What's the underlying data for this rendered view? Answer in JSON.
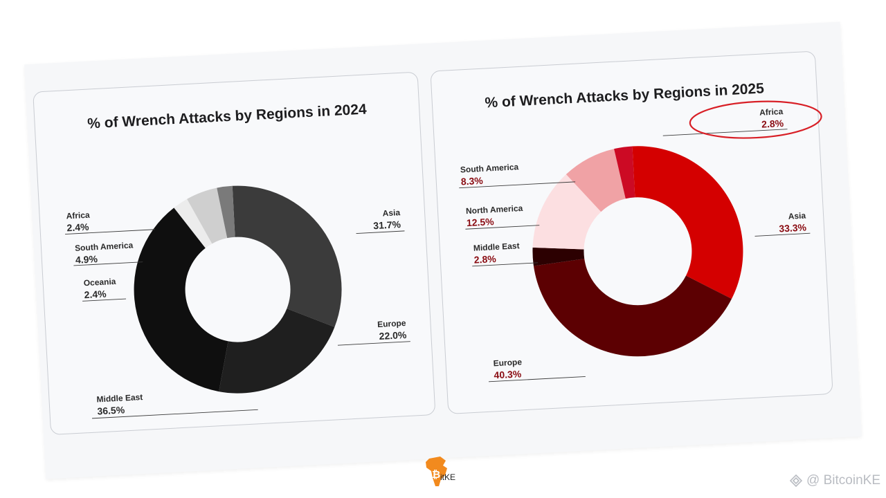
{
  "chart_data": [
    {
      "type": "pie",
      "title": "% of Wrench Attacks by Regions in 2024",
      "series": [
        {
          "label": "Asia",
          "value": 31.7,
          "text": "31.7%",
          "color": "#3b3b3b"
        },
        {
          "label": "Europe",
          "value": 22.0,
          "text": "22.0%",
          "color": "#1f1f1f"
        },
        {
          "label": "Middle East",
          "value": 36.5,
          "text": "36.5%",
          "color": "#0f0f0f"
        },
        {
          "label": "Oceania",
          "value": 2.4,
          "text": "2.4%",
          "color": "#ececec"
        },
        {
          "label": "South America",
          "value": 4.9,
          "text": "4.9%",
          "color": "#cfcfcf"
        },
        {
          "label": "Africa",
          "value": 2.4,
          "text": "2.4%",
          "color": "#7a7a7a"
        }
      ]
    },
    {
      "type": "pie",
      "title": "% of Wrench Attacks by Regions in 2025",
      "series": [
        {
          "label": "Asia",
          "value": 33.3,
          "text": "33.3%",
          "color": "#d40000"
        },
        {
          "label": "Europe",
          "value": 40.3,
          "text": "40.3%",
          "color": "#5c0002"
        },
        {
          "label": "Middle East",
          "value": 2.8,
          "text": "2.8%",
          "color": "#2c0001"
        },
        {
          "label": "North America",
          "value": 12.5,
          "text": "12.5%",
          "color": "#fcdfe1"
        },
        {
          "label": "South America",
          "value": 8.3,
          "text": "8.3%",
          "color": "#f0a2a5"
        },
        {
          "label": "Africa",
          "value": 2.8,
          "text": "2.8%",
          "color": "#cc0a24",
          "highlighted": true
        }
      ]
    }
  ],
  "branding": {
    "logo_text": "itKE",
    "watermark": "@ BitcoinKE"
  }
}
